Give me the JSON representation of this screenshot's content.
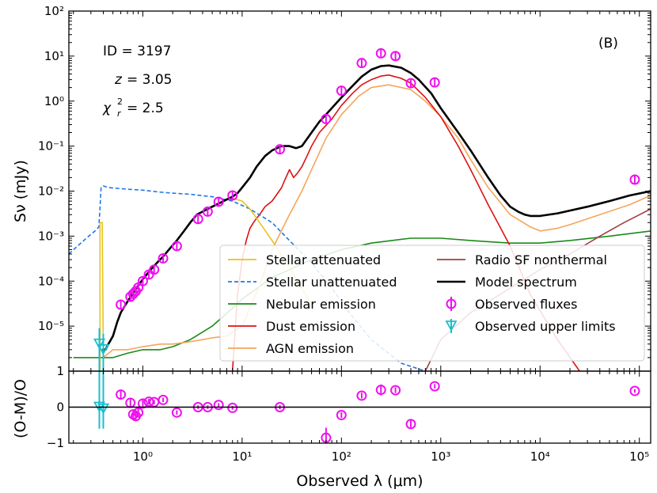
{
  "chart_data": {
    "type": "line",
    "panel_label": "(B)",
    "annotations": {
      "id": "ID = 3197",
      "z_symbol": "z",
      "z_value": "= 3.05",
      "chi_symbol": "χ",
      "chi_value": "= 2.5"
    },
    "xlabel": "Observed λ (μm)",
    "ylabel_top": "Sν (mJy)",
    "ylabel_bottom": "(O-M)/O",
    "xscale": "log",
    "xlim": [
      0.18,
      130000
    ],
    "ylim_top": [
      1e-06,
      100
    ],
    "ylim_bottom": [
      -1,
      1
    ],
    "x_ticks": [
      {
        "v": 1,
        "label": "10⁰"
      },
      {
        "v": 10,
        "label": "10¹"
      },
      {
        "v": 100,
        "label": "10²"
      },
      {
        "v": 1000,
        "label": "10³"
      },
      {
        "v": 10000,
        "label": "10⁴"
      },
      {
        "v": 100000,
        "label": "10⁵"
      }
    ],
    "y_ticks_top": [
      {
        "v": 1e-05,
        "label": "10⁻⁵"
      },
      {
        "v": 0.0001,
        "label": "10⁻⁴"
      },
      {
        "v": 0.001,
        "label": "10⁻³"
      },
      {
        "v": 0.01,
        "label": "10⁻²"
      },
      {
        "v": 0.1,
        "label": "10⁻¹"
      },
      {
        "v": 1,
        "label": "10⁰"
      },
      {
        "v": 10,
        "label": "10¹"
      },
      {
        "v": 100,
        "label": "10²"
      }
    ],
    "y_ticks_bottom": [
      {
        "v": -1,
        "label": "−1"
      },
      {
        "v": 0,
        "label": "0"
      },
      {
        "v": 1,
        "label": "1"
      }
    ],
    "legend": [
      {
        "label": "Stellar attenuated",
        "color": "#e8c31c",
        "style": "solid"
      },
      {
        "label": "Stellar unattenuated",
        "color": "#1f77e4",
        "style": "dashed"
      },
      {
        "label": "Nebular emission",
        "color": "#1a8a1a",
        "style": "solid"
      },
      {
        "label": "Dust emission",
        "color": "#e01010",
        "style": "solid"
      },
      {
        "label": "AGN emission",
        "color": "#f5a55a",
        "style": "solid"
      },
      {
        "label": "Radio SF nonthermal",
        "color": "#a04040",
        "style": "solid"
      },
      {
        "label": "Model spectrum",
        "color": "#000000",
        "style": "solid"
      },
      {
        "label": "Observed fluxes",
        "color": "#ee11ee",
        "style": "marker-circle"
      },
      {
        "label": "Observed upper limits",
        "color": "#17bfcf",
        "style": "marker-triangle"
      }
    ],
    "series": [
      {
        "name": "Model spectrum",
        "color": "#000000",
        "x": [
          0.39,
          0.42,
          0.45,
          0.5,
          0.55,
          0.6,
          0.7,
          0.8,
          0.9,
          1.0,
          1.2,
          1.4,
          1.6,
          1.9,
          2.2,
          2.6,
          3.0,
          3.5,
          4.0,
          5.0,
          6.0,
          7.0,
          8.0,
          9.0,
          10,
          12,
          14,
          17,
          20,
          25,
          30,
          35,
          40,
          50,
          60,
          80,
          100,
          130,
          160,
          200,
          250,
          300,
          400,
          500,
          600,
          800,
          1000,
          1500,
          2000,
          3000,
          4000,
          5000,
          6000,
          7000,
          8000,
          10000,
          15000,
          20000,
          30000,
          50000,
          80000,
          130000
        ],
        "y": [
          3e-06,
          3e-06,
          4e-06,
          6e-06,
          1.2e-05,
          2e-05,
          3.5e-05,
          5.5e-05,
          8e-05,
          0.00011,
          0.00018,
          0.00026,
          0.00035,
          0.00055,
          0.0008,
          0.0013,
          0.002,
          0.003,
          0.0035,
          0.0045,
          0.0055,
          0.0065,
          0.0075,
          0.009,
          0.012,
          0.02,
          0.035,
          0.06,
          0.08,
          0.1,
          0.1,
          0.09,
          0.1,
          0.2,
          0.35,
          0.7,
          1.2,
          2.2,
          3.5,
          5.0,
          6.0,
          6.2,
          5.5,
          4.2,
          3.0,
          1.5,
          0.7,
          0.2,
          0.08,
          0.02,
          0.008,
          0.0045,
          0.0035,
          0.003,
          0.0028,
          0.0028,
          0.0032,
          0.0037,
          0.0045,
          0.006,
          0.008,
          0.01
        ]
      },
      {
        "name": "Stellar unattenuated",
        "color": "#1f77e4",
        "dashed": true,
        "x": [
          0.18,
          0.22,
          0.27,
          0.33,
          0.36,
          0.37,
          0.38,
          0.4,
          0.45,
          0.55,
          0.7,
          1.0,
          1.5,
          2.0,
          3.0,
          5.0,
          8.0,
          12,
          20,
          30,
          50,
          80,
          120,
          200,
          400,
          700
        ],
        "y": [
          0.0004,
          0.0006,
          0.0009,
          0.0013,
          0.0016,
          0.004,
          0.012,
          0.013,
          0.012,
          0.0115,
          0.011,
          0.0105,
          0.0095,
          0.009,
          0.0085,
          0.0075,
          0.006,
          0.004,
          0.002,
          0.0008,
          0.00025,
          7e-05,
          2e-05,
          5e-06,
          1.5e-06,
          1e-06
        ]
      },
      {
        "name": "Stellar attenuated",
        "color": "#e8c31c",
        "x": [
          0.37,
          0.37,
          0.39,
          0.4,
          0.42,
          0.45,
          0.5,
          0.55,
          0.6,
          0.7,
          0.8,
          0.9,
          1.0,
          1.2,
          1.4,
          1.6,
          1.9,
          2.2,
          2.6,
          3.0,
          3.5,
          4.0,
          5.0,
          6.0,
          7.0,
          8.0,
          10,
          12,
          15,
          20,
          30,
          50
        ],
        "y": [
          1e-06,
          0.002,
          0.002,
          3e-06,
          3e-06,
          4e-06,
          6e-06,
          1.2e-05,
          2e-05,
          3.5e-05,
          5.5e-05,
          8e-05,
          0.00011,
          0.00018,
          0.00026,
          0.00035,
          0.00055,
          0.0008,
          0.0013,
          0.002,
          0.003,
          0.0035,
          0.0045,
          0.0055,
          0.0065,
          0.007,
          0.006,
          0.004,
          0.002,
          0.0008,
          0.0002,
          3e-05
        ]
      },
      {
        "name": "Dust emission",
        "color": "#e01010",
        "x": [
          8,
          9,
          10,
          11,
          12,
          13,
          14,
          15,
          17,
          20,
          22,
          25,
          27,
          30,
          33,
          36,
          40,
          45,
          50,
          60,
          80,
          100,
          130,
          160,
          200,
          250,
          300,
          400,
          500,
          700,
          1000,
          1500,
          2000,
          3000,
          5000,
          8000,
          15000,
          25000
        ],
        "y": [
          1e-06,
          5e-05,
          0.0003,
          0.0008,
          0.0015,
          0.002,
          0.0025,
          0.003,
          0.0045,
          0.006,
          0.008,
          0.012,
          0.018,
          0.03,
          0.02,
          0.025,
          0.035,
          0.06,
          0.1,
          0.2,
          0.4,
          0.8,
          1.5,
          2.3,
          3.0,
          3.6,
          3.8,
          3.2,
          2.5,
          1.2,
          0.45,
          0.1,
          0.03,
          0.005,
          0.0006,
          5e-05,
          5e-06,
          1e-06
        ]
      },
      {
        "name": "AGN emission",
        "color": "#f5a55a",
        "x": [
          0.4,
          0.5,
          0.7,
          1.0,
          1.5,
          2.0,
          3.0,
          4.0,
          5.0,
          7.0,
          10,
          15,
          20,
          30,
          40,
          50,
          70,
          100,
          150,
          200,
          300,
          500,
          700,
          1000,
          1500,
          2000,
          3000,
          5000,
          8000,
          10000,
          15000,
          20000,
          40000,
          80000,
          130000
        ],
        "y": [
          2e-06,
          3e-06,
          3e-06,
          3.5e-06,
          4e-06,
          4e-06,
          4.5e-06,
          5e-06,
          5.5e-06,
          6e-06,
          1e-05,
          8e-05,
          0.0005,
          0.003,
          0.01,
          0.03,
          0.15,
          0.5,
          1.3,
          2.0,
          2.3,
          1.8,
          1.0,
          0.45,
          0.15,
          0.05,
          0.012,
          0.003,
          0.0016,
          0.0013,
          0.0015,
          0.0018,
          0.003,
          0.005,
          0.008
        ]
      },
      {
        "name": "Nebular emission",
        "color": "#1a8a1a",
        "x": [
          0.2,
          0.4,
          0.5,
          0.7,
          1.0,
          1.5,
          2.0,
          3.0,
          5.0,
          8.0,
          10,
          20,
          50,
          100,
          200,
          500,
          1000,
          2000,
          5000,
          10000,
          20000,
          50000,
          130000
        ],
        "y": [
          2e-06,
          2e-06,
          2e-06,
          2.5e-06,
          3e-06,
          3e-06,
          3.5e-06,
          5e-06,
          1e-05,
          2.5e-05,
          4e-05,
          0.00012,
          0.0003,
          0.0005,
          0.0007,
          0.0009,
          0.0009,
          0.0008,
          0.0007,
          0.0007,
          0.0008,
          0.001,
          0.0013
        ]
      },
      {
        "name": "Radio SF nonthermal",
        "color": "#a04040",
        "x": [
          700,
          1000,
          2000,
          5000,
          10000,
          20000,
          40000,
          70000,
          130000
        ],
        "y": [
          1e-06,
          5e-06,
          2e-05,
          7e-05,
          0.00018,
          0.0004,
          0.001,
          0.002,
          0.004
        ]
      }
    ],
    "observed": [
      {
        "x": 0.6,
        "y": 3e-05,
        "res": 0.35,
        "rerr": 0.12
      },
      {
        "x": 0.75,
        "y": 4.5e-05,
        "res": 0.12,
        "rerr": 0.1
      },
      {
        "x": 0.8,
        "y": 5.2e-05,
        "res": -0.2,
        "rerr": 0.12
      },
      {
        "x": 0.85,
        "y": 6e-05,
        "res": -0.25,
        "rerr": 0.12
      },
      {
        "x": 0.9,
        "y": 7.2e-05,
        "res": -0.15,
        "rerr": 0.1
      },
      {
        "x": 1.0,
        "y": 0.0001,
        "res": 0.1,
        "rerr": 0.1
      },
      {
        "x": 1.15,
        "y": 0.00014,
        "res": 0.15,
        "rerr": 0.08
      },
      {
        "x": 1.3,
        "y": 0.00018,
        "res": 0.14,
        "rerr": 0.06
      },
      {
        "x": 1.6,
        "y": 0.00032,
        "res": 0.2,
        "rerr": 0.06
      },
      {
        "x": 2.2,
        "y": 0.0006,
        "res": -0.15,
        "rerr": 0.06
      },
      {
        "x": 3.6,
        "y": 0.0024,
        "res": 0.0,
        "rerr": 0.05
      },
      {
        "x": 4.5,
        "y": 0.0035,
        "res": 0.0,
        "rerr": 0.05
      },
      {
        "x": 5.8,
        "y": 0.0058,
        "res": 0.06,
        "rerr": 0.05
      },
      {
        "x": 8.0,
        "y": 0.008,
        "res": -0.02,
        "rerr": 0.05
      },
      {
        "x": 24,
        "y": 0.085,
        "res": 0.0,
        "rerr": 0.06
      },
      {
        "x": 70,
        "y": 0.4,
        "res": -0.85,
        "rerr": 0.28
      },
      {
        "x": 100,
        "y": 1.7,
        "res": -0.22,
        "rerr": 0.08
      },
      {
        "x": 160,
        "y": 7.0,
        "res": 0.32,
        "rerr": 0.08
      },
      {
        "x": 250,
        "y": 11.5,
        "res": 0.48,
        "rerr": 0.15
      },
      {
        "x": 350,
        "y": 10.0,
        "res": 0.47,
        "rerr": 0.08
      },
      {
        "x": 500,
        "y": 2.5,
        "res": -0.47,
        "rerr": 0.1
      },
      {
        "x": 870,
        "y": 2.6,
        "res": 0.58,
        "rerr": 0.06
      },
      {
        "x": 90000,
        "y": 0.018,
        "res": 0.45,
        "rerr": 0.05
      }
    ],
    "upper_limits": [
      {
        "x": 0.365,
        "y": 4e-06,
        "res": 0.0
      },
      {
        "x": 0.4,
        "y": 3e-06,
        "res": -0.05
      }
    ]
  }
}
